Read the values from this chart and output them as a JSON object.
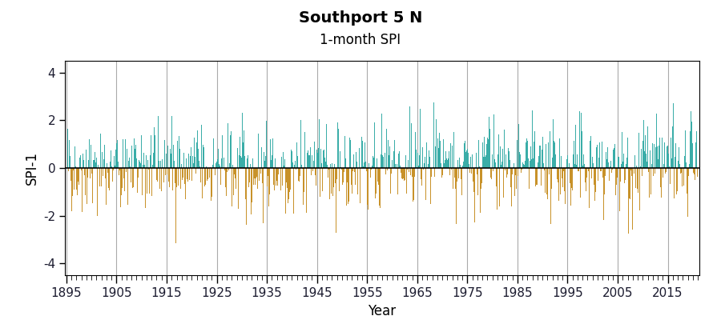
{
  "title": "Southport 5 N",
  "subtitle": "1-month SPI",
  "xlabel": "Year",
  "ylabel": "SPI-1",
  "start_year": 1895,
  "end_year": 2020,
  "ylim": [
    -4.5,
    4.5
  ],
  "yticks": [
    -4,
    -2,
    0,
    2,
    4
  ],
  "xticks": [
    1895,
    1905,
    1915,
    1925,
    1935,
    1945,
    1955,
    1965,
    1975,
    1985,
    1995,
    2005,
    2015
  ],
  "positive_color": "#3aada8",
  "negative_color": "#c8922a",
  "grid_color": "#aaaaaa",
  "zero_line_color": "#000000",
  "background_color": "#ffffff",
  "title_fontsize": 14,
  "subtitle_fontsize": 12,
  "axis_label_fontsize": 12,
  "tick_fontsize": 11,
  "tick_color": "#1a1a2e",
  "seed": 42,
  "n_months": 1512
}
